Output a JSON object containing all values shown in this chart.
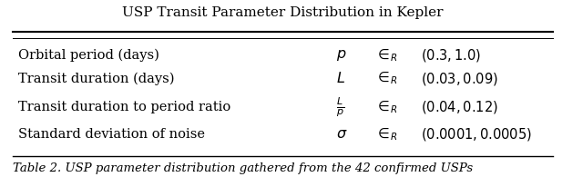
{
  "title": "USP Transit Parameter Distribution in Kepler",
  "rows": [
    {
      "parameter": "Orbital period (days)",
      "symbol": "$p$",
      "range": "$(0.3, 1.0)$"
    },
    {
      "parameter": "Transit duration (days)",
      "symbol": "$L$",
      "range": "$(0.03, 0.09)$"
    },
    {
      "parameter": "Transit duration to period ratio",
      "symbol": "$\\frac{L}{p}$",
      "range": "$(0.04, 0.12)$"
    },
    {
      "parameter": "Standard deviation of noise",
      "symbol": "$\\sigma$",
      "range": "$(0.0001, 0.0005)$"
    }
  ],
  "caption": "Table 2. USP parameter distribution gathered from the 42 confirmed USPs",
  "bg_color": "#ffffff",
  "text_color": "#000000",
  "title_fontsize": 11,
  "body_fontsize": 10.5,
  "caption_fontsize": 9.5
}
